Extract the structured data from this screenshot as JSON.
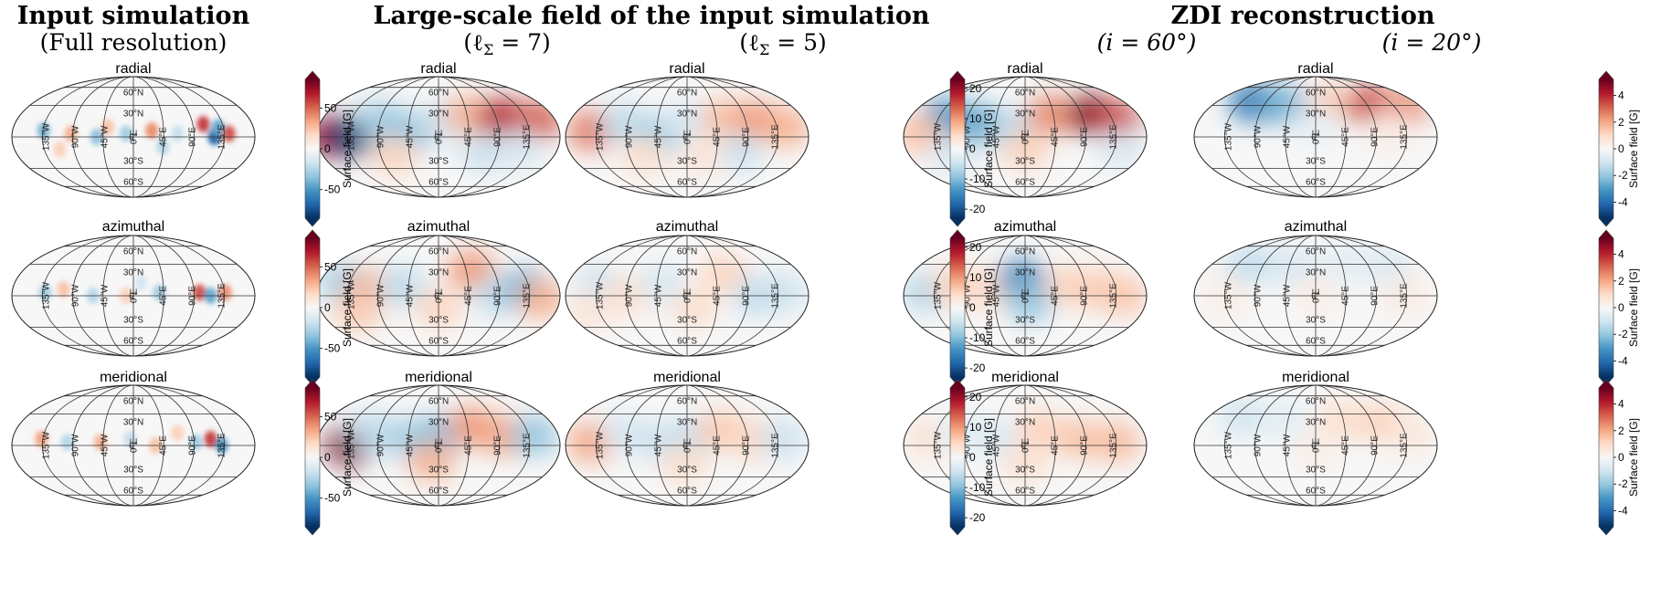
{
  "headers": {
    "input_title": "Input simulation",
    "input_sub": "(Full resolution)",
    "large_title": "Large-scale field of the input simulation",
    "large_sub1": "(ℓ",
    "large_sub1_sym": "Σ",
    "large_sub1_rest": " = 7)",
    "large_sub2": "(ℓ",
    "large_sub2_sym": "Σ",
    "large_sub2_rest": " = 5)",
    "zdi_title": "ZDI reconstruction",
    "zdi_sub1": "(i = 60°)",
    "zdi_sub2": "(i = 20°)"
  },
  "components": [
    "radial",
    "azimuthal",
    "meridional"
  ],
  "lat_labels": [
    "60°N",
    "30°N",
    "0°",
    "30°S",
    "60°S"
  ],
  "lon_labels": [
    "135°W",
    "90°W",
    "45°W",
    "0°E",
    "45°E",
    "90°E",
    "135°E"
  ],
  "colorbar": {
    "label": "Surface field [G]",
    "colormap": "RdBu_r",
    "pos_color": "#67001f",
    "neg_color": "#053061",
    "input_ticks": [
      "50",
      "0",
      "-50"
    ],
    "input_range": [
      -85,
      85
    ],
    "large_ticks": [
      "20",
      "10",
      "0",
      "-10",
      "-20"
    ],
    "large_range": [
      -23,
      23
    ],
    "zdi_ticks": [
      "4",
      "2",
      "0",
      "-2",
      "-4"
    ],
    "zdi_range": [
      -5.2,
      5.2
    ]
  },
  "columns": [
    {
      "id": "input",
      "norm": 85,
      "style": "fine"
    },
    {
      "id": "l7",
      "norm": 23,
      "style": "smooth"
    },
    {
      "id": "l5",
      "norm": 23,
      "style": "smooth"
    },
    {
      "id": "zdi60",
      "norm": 5.2,
      "style": "smooth"
    },
    {
      "id": "zdi20",
      "norm": 5.2,
      "style": "smooth"
    }
  ],
  "maps": {
    "input": {
      "radial": [
        [
          -1.22,
          0.1,
          -40
        ],
        [
          -0.85,
          0.05,
          30
        ],
        [
          -0.5,
          0.0,
          -35
        ],
        [
          -0.35,
          0.15,
          25
        ],
        [
          -0.1,
          0.05,
          -30
        ],
        [
          0.25,
          0.1,
          40
        ],
        [
          0.6,
          0.05,
          -20
        ],
        [
          0.95,
          0.2,
          60
        ],
        [
          1.1,
          0.0,
          -70
        ],
        [
          1.3,
          0.05,
          55
        ],
        [
          -1.0,
          -0.2,
          20
        ],
        [
          0.4,
          -0.15,
          -25
        ],
        [
          1.15,
          0.15,
          -45
        ]
      ],
      "azimuthal": [
        [
          -1.2,
          0.05,
          -30
        ],
        [
          -0.95,
          0.1,
          25
        ],
        [
          -0.55,
          0.0,
          -25
        ],
        [
          -0.1,
          0.0,
          20
        ],
        [
          0.35,
          0.05,
          -30
        ],
        [
          0.9,
          0.05,
          55
        ],
        [
          1.05,
          0.0,
          -45
        ],
        [
          1.25,
          0.05,
          40
        ],
        [
          0.1,
          0.2,
          -15
        ]
      ],
      "meridional": [
        [
          -1.25,
          0.1,
          35
        ],
        [
          -0.9,
          0.05,
          -25
        ],
        [
          -0.45,
          0.05,
          30
        ],
        [
          -0.05,
          0.1,
          -20
        ],
        [
          0.3,
          0.0,
          25
        ],
        [
          0.85,
          0.05,
          -30
        ],
        [
          1.05,
          0.1,
          60
        ],
        [
          1.2,
          0.0,
          -50
        ],
        [
          0.6,
          0.2,
          20
        ]
      ]
    },
    "l7": {
      "radial": [
        [
          -1.48,
          0.0,
          20
        ],
        [
          -1.18,
          0.0,
          -22
        ],
        [
          -0.8,
          0.25,
          -8
        ],
        [
          -0.4,
          0.05,
          -10
        ],
        [
          0.05,
          0.25,
          -5
        ],
        [
          0.4,
          0.35,
          8
        ],
        [
          0.85,
          0.3,
          18
        ],
        [
          1.35,
          0.25,
          14
        ],
        [
          0.6,
          -0.25,
          -5
        ],
        [
          -0.6,
          -0.3,
          5
        ],
        [
          1.1,
          -0.2,
          -4
        ]
      ],
      "azimuthal": [
        [
          -1.3,
          0.2,
          -8
        ],
        [
          -0.95,
          0.1,
          8
        ],
        [
          -0.5,
          0.15,
          -6
        ],
        [
          0.0,
          -0.2,
          5
        ],
        [
          0.45,
          0.4,
          10
        ],
        [
          0.8,
          0.0,
          -6
        ],
        [
          1.2,
          0.1,
          -12
        ],
        [
          1.4,
          -0.05,
          8
        ],
        [
          -1.1,
          -0.25,
          6
        ]
      ],
      "meridional": [
        [
          -1.2,
          0.0,
          22
        ],
        [
          -0.9,
          0.2,
          -6
        ],
        [
          -0.4,
          0.1,
          -8
        ],
        [
          0.0,
          0.15,
          -10
        ],
        [
          0.45,
          0.3,
          10
        ],
        [
          0.9,
          0.15,
          9
        ],
        [
          1.3,
          0.15,
          -9
        ],
        [
          -0.1,
          -0.25,
          8
        ]
      ]
    },
    "l5": {
      "radial": [
        [
          -1.3,
          0.1,
          12
        ],
        [
          -0.85,
          0.2,
          -6
        ],
        [
          -0.4,
          0.0,
          -9
        ],
        [
          0.0,
          0.25,
          -4
        ],
        [
          0.5,
          0.3,
          7
        ],
        [
          0.95,
          0.25,
          10
        ],
        [
          1.35,
          0.15,
          8
        ],
        [
          0.7,
          -0.25,
          -5
        ],
        [
          -0.6,
          -0.3,
          4
        ],
        [
          0.2,
          -0.3,
          3
        ]
      ],
      "azimuthal": [
        [
          -1.2,
          0.15,
          -5
        ],
        [
          -0.8,
          0.0,
          4
        ],
        [
          -0.35,
          0.2,
          -4
        ],
        [
          0.1,
          -0.2,
          4
        ],
        [
          0.5,
          0.35,
          5
        ],
        [
          0.95,
          0.0,
          -6
        ],
        [
          1.3,
          0.05,
          -5
        ],
        [
          -1.35,
          -0.25,
          3
        ]
      ],
      "meridional": [
        [
          -1.3,
          0.05,
          9
        ],
        [
          -0.85,
          0.2,
          -4
        ],
        [
          -0.4,
          0.05,
          -5
        ],
        [
          0.05,
          0.1,
          -6
        ],
        [
          0.45,
          0.25,
          6
        ],
        [
          0.9,
          0.1,
          5
        ],
        [
          1.3,
          0.1,
          -5
        ],
        [
          -0.05,
          -0.3,
          4
        ]
      ]
    },
    "zdi60": {
      "radial": [
        [
          -1.1,
          0.3,
          -3.2
        ],
        [
          -0.6,
          0.2,
          -2.8
        ],
        [
          -0.2,
          0.1,
          -1.5
        ],
        [
          0.35,
          0.35,
          2.5
        ],
        [
          0.9,
          0.35,
          4.8
        ],
        [
          1.25,
          0.25,
          3.5
        ],
        [
          -1.45,
          0.05,
          1.5
        ],
        [
          0.0,
          -0.2,
          1.2
        ],
        [
          -1.0,
          -0.3,
          -0.8
        ],
        [
          1.3,
          -0.2,
          -0.8
        ]
      ],
      "azimuthal": [
        [
          -1.35,
          0.05,
          -1.5
        ],
        [
          -0.95,
          0.15,
          1.2
        ],
        [
          -0.5,
          0.1,
          1.0
        ],
        [
          -0.05,
          0.25,
          -3.5
        ],
        [
          0.05,
          -0.1,
          -2.0
        ],
        [
          0.6,
          0.15,
          1.2
        ],
        [
          1.0,
          0.1,
          1.3
        ],
        [
          1.35,
          0.0,
          1.4
        ]
      ],
      "meridional": [
        [
          -1.3,
          0.1,
          0.8
        ],
        [
          -0.9,
          0.2,
          -0.6
        ],
        [
          -0.4,
          0.1,
          -0.8
        ],
        [
          0.2,
          0.25,
          1.2
        ],
        [
          0.75,
          0.1,
          1.5
        ],
        [
          1.25,
          0.05,
          1.6
        ],
        [
          0.0,
          -0.3,
          0.8
        ]
      ]
    },
    "zdi20": {
      "radial": [
        [
          -0.85,
          0.55,
          -3.8
        ],
        [
          -0.45,
          0.5,
          -2.5
        ],
        [
          0.2,
          0.5,
          1.5
        ],
        [
          0.75,
          0.5,
          3.5
        ],
        [
          1.2,
          0.45,
          2.5
        ],
        [
          0.0,
          0.2,
          -0.5
        ],
        [
          1.0,
          0.1,
          0.4
        ]
      ],
      "azimuthal": [
        [
          -0.9,
          0.5,
          -1.3
        ],
        [
          -0.3,
          0.45,
          -0.9
        ],
        [
          0.4,
          0.5,
          -0.6
        ],
        [
          1.0,
          0.45,
          -0.8
        ],
        [
          0.0,
          0.05,
          0.4
        ],
        [
          1.2,
          0.0,
          0.5
        ],
        [
          -1.2,
          0.0,
          0.4
        ]
      ],
      "meridional": [
        [
          -1.0,
          0.45,
          -1.0
        ],
        [
          -0.4,
          0.4,
          -0.6
        ],
        [
          0.35,
          0.4,
          0.9
        ],
        [
          0.9,
          0.35,
          1.2
        ],
        [
          1.3,
          0.2,
          0.6
        ],
        [
          0.0,
          0.0,
          0.4
        ]
      ]
    }
  }
}
